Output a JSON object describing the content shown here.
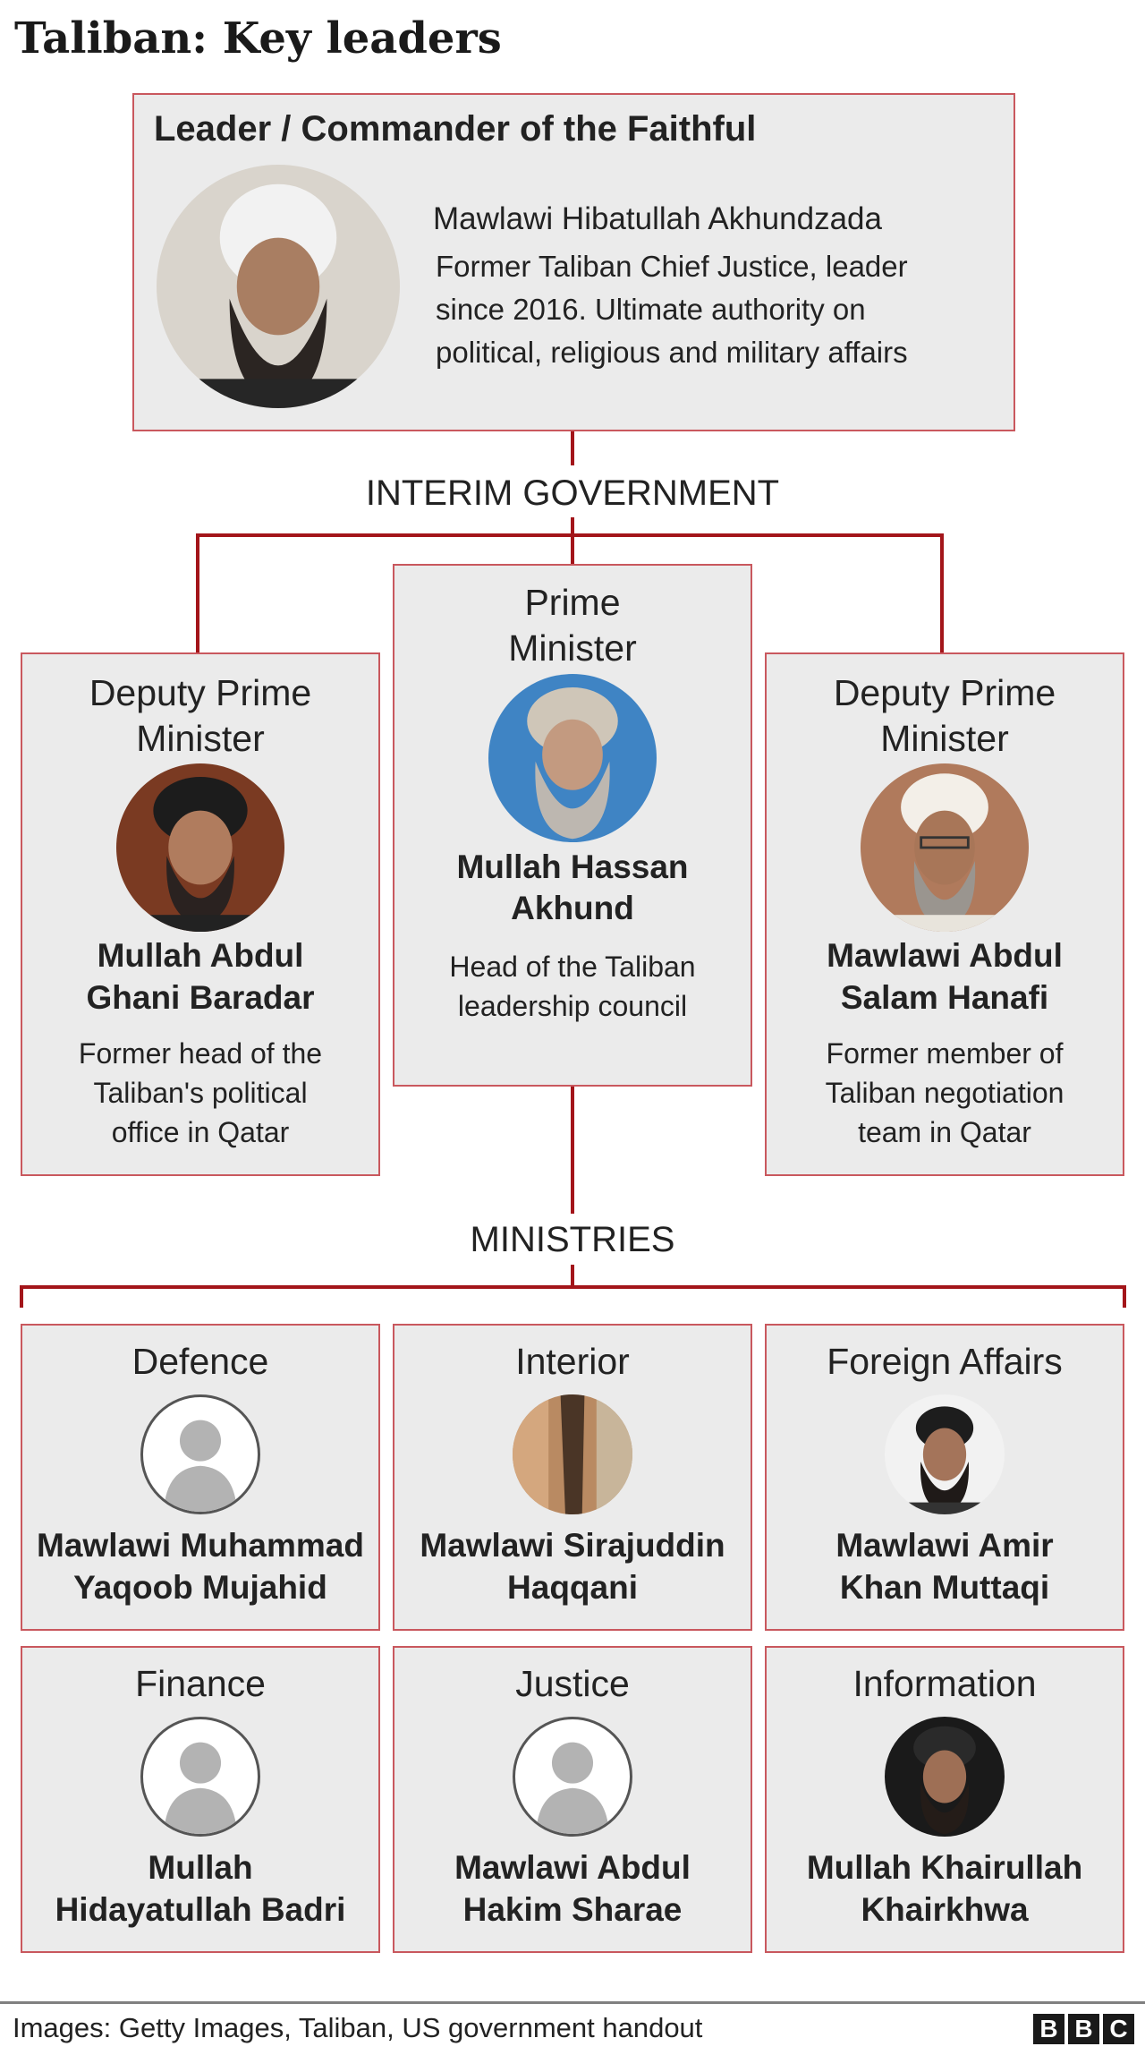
{
  "title": "Taliban: Key leaders",
  "leader": {
    "heading": "Leader / Commander of the Faithful",
    "name": "Mawlawi Hibatullah Akhundzada",
    "desc": [
      "Former Taliban Chief Justice, leader",
      "since 2016. Ultimate authority on",
      "political, religious and military affairs"
    ]
  },
  "interim_label": "INTERIM GOVERNMENT",
  "government": [
    {
      "role": [
        "Deputy Prime",
        "Minister"
      ],
      "name": [
        "Mullah Abdul",
        "Ghani Baradar"
      ],
      "desc": [
        "Former head of the",
        "Taliban's political",
        "office in Qatar"
      ]
    },
    {
      "role": [
        "Prime",
        "Minister"
      ],
      "name": [
        "Mullah Hassan",
        "Akhund"
      ],
      "desc": [
        "Head of the Taliban",
        "leadership council"
      ]
    },
    {
      "role": [
        "Deputy Prime",
        "Minister"
      ],
      "name": [
        "Mawlawi Abdul",
        "Salam Hanafi"
      ],
      "desc": [
        "Former member of",
        "Taliban negotiation",
        "team in Qatar"
      ]
    }
  ],
  "ministries_label": "MINISTRIES",
  "ministries": [
    {
      "ministry": "Defence",
      "name": [
        "Mawlawi Muhammad",
        "Yaqoob Mujahid"
      ],
      "photo": "silhouette-placeholder"
    },
    {
      "ministry": "Interior",
      "name": [
        "Mawlawi Sirajuddin",
        "Haqqani"
      ],
      "photo": "photo"
    },
    {
      "ministry": "Foreign Affairs",
      "name": [
        "Mawlawi Amir",
        "Khan Muttaqi"
      ],
      "photo": "photo"
    },
    {
      "ministry": "Finance",
      "name": [
        "Mullah",
        "Hidayatullah Badri"
      ],
      "photo": "silhouette-placeholder"
    },
    {
      "ministry": "Justice",
      "name": [
        "Mawlawi Abdul",
        "Hakim Sharae"
      ],
      "photo": "silhouette-placeholder"
    },
    {
      "ministry": "Information",
      "name": [
        "Mullah Khairullah",
        "Khairkhwa"
      ],
      "photo": "photo"
    }
  ],
  "footer": {
    "credit": "Images: Getty Images, Taliban, US government handout",
    "logo": [
      "B",
      "B",
      "C"
    ]
  },
  "colors": {
    "box_bg": "#ebebeb",
    "box_border": "#c9585e",
    "connector": "#a3151a",
    "text": "#222222"
  }
}
